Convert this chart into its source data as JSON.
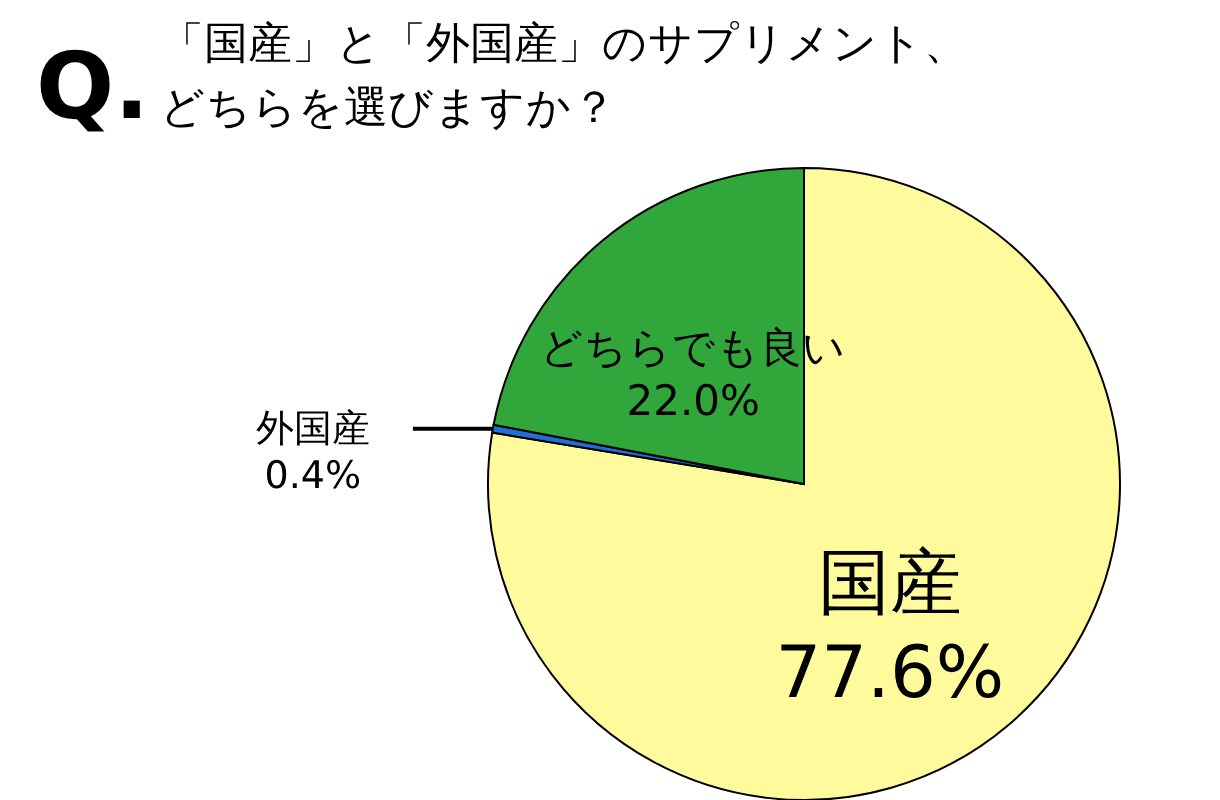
{
  "chart_data": {
    "type": "pie",
    "title": "「国産」と「外国産」のサプリメント、どちらを選びますか？",
    "annotations": [
      "Q."
    ],
    "categories": [
      "国産",
      "外国産",
      "どちらでも良い"
    ],
    "values": [
      77.6,
      0.4,
      22.0
    ],
    "value_labels": [
      "77.6%",
      "0.4%",
      "22.0%"
    ],
    "colors": [
      "#fffa9b",
      "#1f6fd6",
      "#31a63a"
    ]
  }
}
